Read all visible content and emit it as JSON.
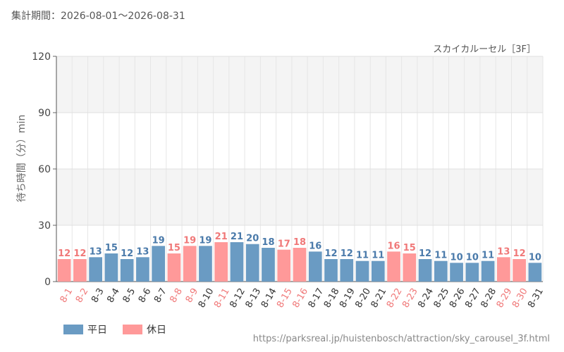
{
  "header": {
    "period_label": "集計期間：2026-08-01～2026-08-31"
  },
  "chart_data": {
    "type": "bar",
    "title": "スカイカルーセル［3F］",
    "ylabel": "待ち時間（分）min",
    "xlabel": "",
    "ylim": [
      0,
      120
    ],
    "yticks": [
      0,
      30,
      60,
      90,
      120
    ],
    "grid": true,
    "legend_position": "bottom-left",
    "categories": [
      "8-1",
      "8-2",
      "8-3",
      "8-4",
      "8-5",
      "8-6",
      "8-7",
      "8-8",
      "8-9",
      "8-10",
      "8-11",
      "8-12",
      "8-13",
      "8-14",
      "8-15",
      "8-16",
      "8-17",
      "8-18",
      "8-19",
      "8-20",
      "8-21",
      "8-22",
      "8-23",
      "8-24",
      "8-25",
      "8-26",
      "8-27",
      "8-28",
      "8-29",
      "8-30",
      "8-31"
    ],
    "values": [
      12,
      12,
      13,
      15,
      12,
      13,
      19,
      15,
      19,
      19,
      21,
      21,
      20,
      18,
      17,
      18,
      16,
      12,
      12,
      11,
      11,
      16,
      15,
      12,
      11,
      10,
      10,
      11,
      13,
      12,
      10
    ],
    "day_types": [
      "holiday",
      "holiday",
      "weekday",
      "weekday",
      "weekday",
      "weekday",
      "weekday",
      "holiday",
      "holiday",
      "weekday",
      "holiday",
      "weekday",
      "weekday",
      "weekday",
      "holiday",
      "holiday",
      "weekday",
      "weekday",
      "weekday",
      "weekday",
      "weekday",
      "holiday",
      "holiday",
      "weekday",
      "weekday",
      "weekday",
      "weekday",
      "weekday",
      "holiday",
      "holiday",
      "weekday"
    ],
    "series": [
      {
        "key": "weekday",
        "name": "平日",
        "color": "#6a9bc3",
        "label_color": "#4a7aaa"
      },
      {
        "key": "holiday",
        "name": "休日",
        "color": "#ff9999",
        "label_color": "#f07878"
      }
    ]
  },
  "footer": {
    "source_url": "https://parksreal.jp/huistenbosch/attraction/sky_carousel_3f.html"
  }
}
